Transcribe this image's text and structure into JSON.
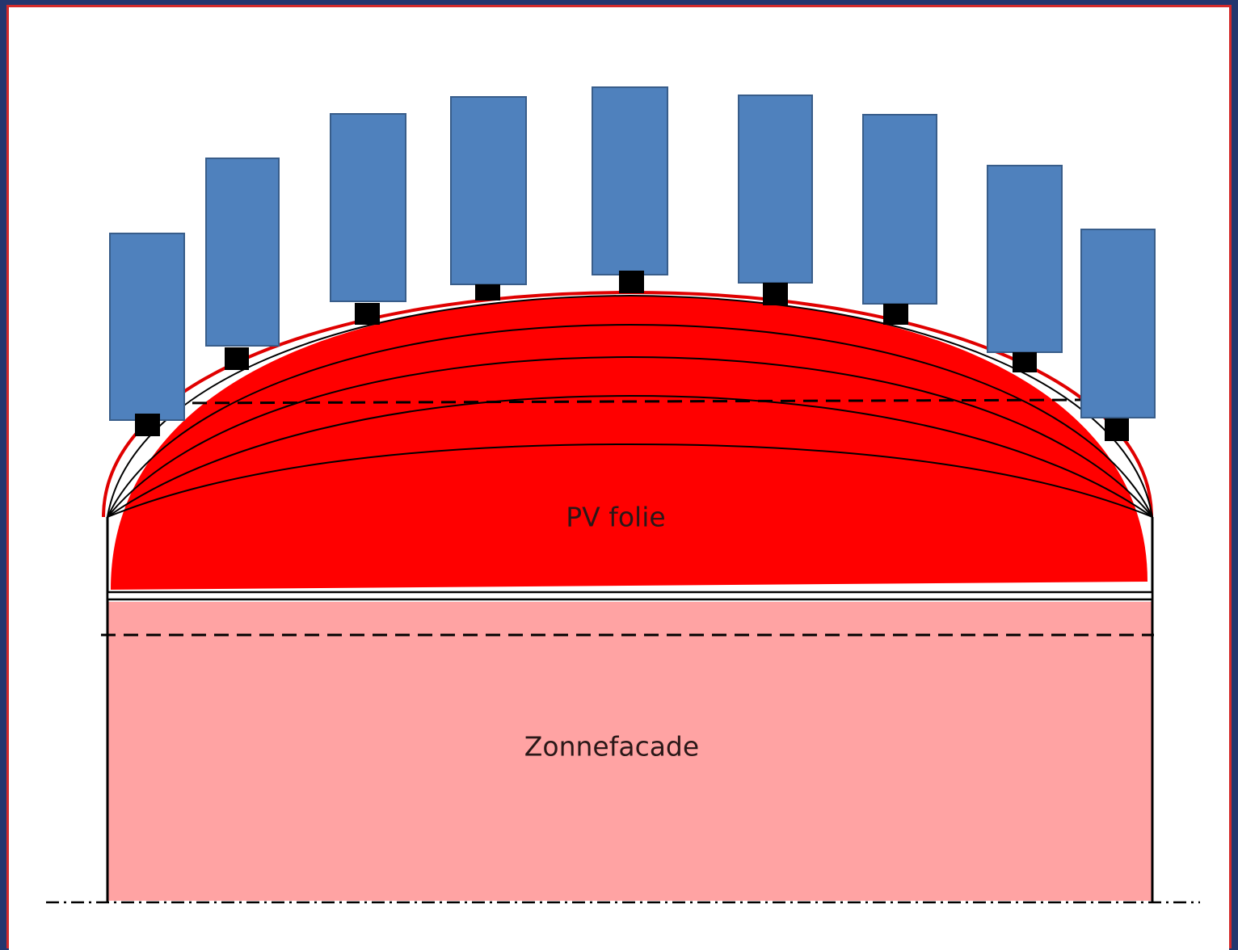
{
  "labels": {
    "pv": "PV folie",
    "facade": "Zonnefacade"
  }
}
